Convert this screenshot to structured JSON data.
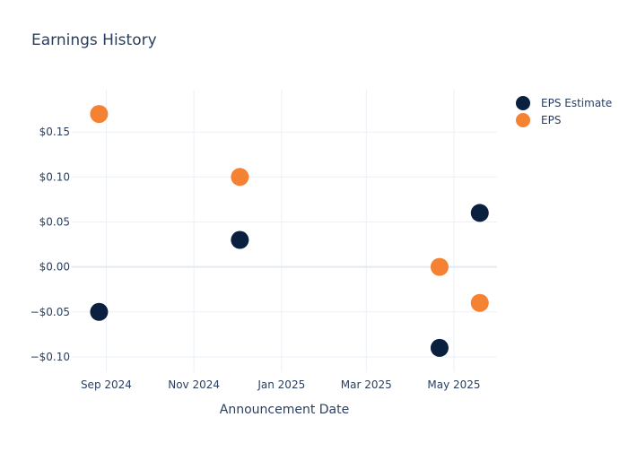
{
  "chart_data": {
    "type": "scatter",
    "title": "Earnings History",
    "xlabel": "Announcement Date",
    "ylabel": "",
    "x_ticks": [
      {
        "date": "2024-09-01",
        "label": "Sep 2024"
      },
      {
        "date": "2024-11-01",
        "label": "Nov 2024"
      },
      {
        "date": "2025-01-01",
        "label": "Jan 2025"
      },
      {
        "date": "2025-03-01",
        "label": "Mar 2025"
      },
      {
        "date": "2025-05-01",
        "label": "May 2025"
      }
    ],
    "y_ticks": [
      {
        "value": -0.1,
        "label": "−$0.10"
      },
      {
        "value": -0.05,
        "label": "−$0.05"
      },
      {
        "value": 0.0,
        "label": "$0.00"
      },
      {
        "value": 0.05,
        "label": "$0.05"
      },
      {
        "value": 0.1,
        "label": "$0.10"
      },
      {
        "value": 0.15,
        "label": "$0.15"
      }
    ],
    "xlim": [
      "2024-08-08",
      "2025-05-31"
    ],
    "ylim": [
      -0.117,
      0.197
    ],
    "grid": true,
    "legend_position": "top-right",
    "series": [
      {
        "name": "EPS Estimate",
        "color": "#0b1f3f",
        "points": [
          {
            "x": "2024-08-27",
            "y": -0.05
          },
          {
            "x": "2024-12-03",
            "y": 0.03
          },
          {
            "x": "2025-04-21",
            "y": -0.09
          },
          {
            "x": "2025-05-19",
            "y": 0.06
          }
        ]
      },
      {
        "name": "EPS",
        "color": "#f58232",
        "points": [
          {
            "x": "2024-08-27",
            "y": 0.17
          },
          {
            "x": "2024-12-03",
            "y": 0.1
          },
          {
            "x": "2025-04-21",
            "y": 0.0
          },
          {
            "x": "2025-05-19",
            "y": -0.04
          }
        ]
      }
    ]
  }
}
